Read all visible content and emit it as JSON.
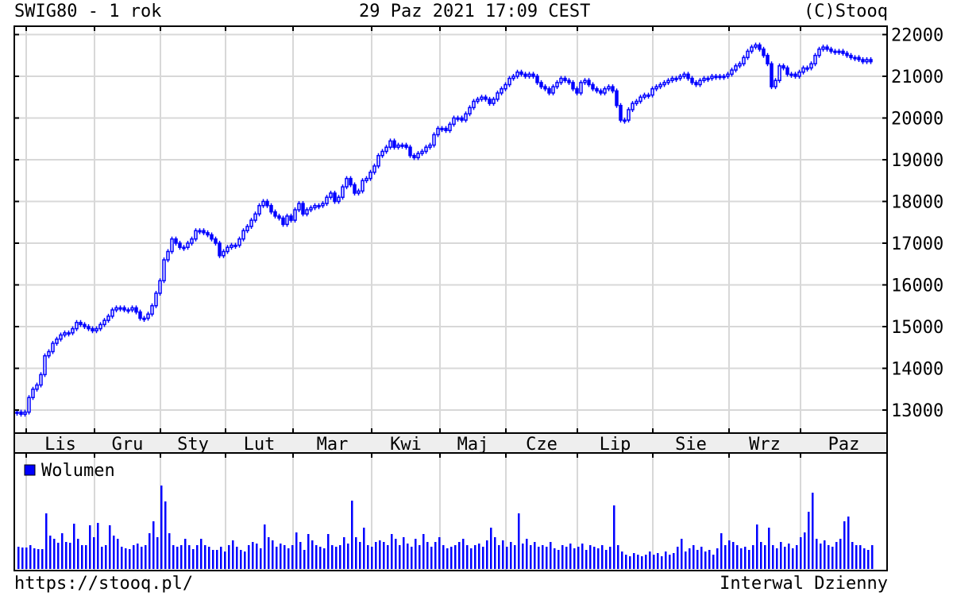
{
  "header": {
    "title": "SWIG80 - 1 rok",
    "datetime": "29 Paz 2021 17:09 CEST",
    "copyright": "(C)Stooq"
  },
  "footer": {
    "url": "https://stooq.pl/",
    "interval": "Interwal Dzienny"
  },
  "colors": {
    "series": "#0000ff",
    "grid": "#d8d8d8",
    "axis_band": "#eeeeee",
    "frame": "#000000"
  },
  "chart_data": [
    {
      "type": "candlestick",
      "title": "SWIG80 - 1 rok",
      "ylim": [
        12500,
        22200
      ],
      "yticks": [
        13000,
        14000,
        15000,
        16000,
        17000,
        18000,
        19000,
        20000,
        21000,
        22000
      ],
      "ytick_labels": [
        "13000",
        "14000",
        "15000",
        "16000",
        "17000",
        "18000",
        "19000",
        "20000",
        "21000",
        "22000"
      ],
      "y_axis_side": "right",
      "grid": true,
      "month_labels": [
        "Lis",
        "Gru",
        "Sty",
        "Lut",
        "Mar",
        "Kwi",
        "Maj",
        "Cze",
        "Lip",
        "Sie",
        "Wrz",
        "Paz"
      ],
      "close": [
        12950,
        12900,
        12950,
        13300,
        13500,
        13600,
        13850,
        14300,
        14400,
        14600,
        14700,
        14800,
        14850,
        14850,
        14950,
        15100,
        15050,
        15000,
        14950,
        14900,
        14950,
        15050,
        15150,
        15250,
        15400,
        15450,
        15450,
        15400,
        15400,
        15450,
        15350,
        15200,
        15200,
        15300,
        15500,
        15800,
        16100,
        16600,
        16800,
        17100,
        17000,
        16900,
        16900,
        17000,
        17100,
        17300,
        17300,
        17250,
        17200,
        17100,
        17000,
        16700,
        16800,
        16900,
        16950,
        16950,
        17100,
        17300,
        17400,
        17550,
        17700,
        17900,
        18000,
        17900,
        17750,
        17650,
        17600,
        17450,
        17650,
        17550,
        17800,
        17950,
        17700,
        17800,
        17850,
        17900,
        17900,
        17950,
        18100,
        18200,
        18000,
        18100,
        18350,
        18550,
        18400,
        18200,
        18250,
        18500,
        18550,
        18700,
        18850,
        19100,
        19200,
        19300,
        19450,
        19300,
        19350,
        19350,
        19300,
        19100,
        19050,
        19150,
        19200,
        19300,
        19350,
        19600,
        19750,
        19750,
        19700,
        19850,
        20000,
        20000,
        19950,
        20100,
        20250,
        20400,
        20450,
        20500,
        20450,
        20350,
        20450,
        20600,
        20700,
        20800,
        20950,
        21000,
        21100,
        21050,
        21000,
        21050,
        21000,
        20850,
        20750,
        20700,
        20600,
        20750,
        20850,
        20950,
        20900,
        20850,
        20700,
        20600,
        20850,
        20900,
        20800,
        20700,
        20650,
        20600,
        20700,
        20750,
        20650,
        20300,
        19950,
        19950,
        20200,
        20350,
        20400,
        20500,
        20550,
        20550,
        20700,
        20750,
        20800,
        20850,
        20900,
        20950,
        20950,
        21000,
        21050,
        20950,
        20850,
        20800,
        20900,
        20950,
        20950,
        21000,
        21000,
        21000,
        21000,
        21050,
        21150,
        21250,
        21300,
        21450,
        21600,
        21700,
        21750,
        21650,
        21500,
        21300,
        20750,
        20900,
        21250,
        21200,
        21050,
        21050,
        21000,
        21100,
        21200,
        21200,
        21300,
        21500,
        21650,
        21700,
        21650,
        21600,
        21600,
        21600,
        21550,
        21500,
        21450,
        21450,
        21400,
        21350,
        21400,
        21350
      ]
    },
    {
      "type": "bar",
      "legend": "Wolumen",
      "legend_placement": "top-left",
      "values": [
        28,
        27,
        27,
        30,
        26,
        25,
        25,
        70,
        42,
        38,
        33,
        45,
        34,
        33,
        57,
        38,
        30,
        30,
        55,
        40,
        58,
        28,
        30,
        55,
        42,
        38,
        28,
        26,
        25,
        30,
        32,
        28,
        30,
        45,
        60,
        40,
        105,
        85,
        45,
        30,
        28,
        30,
        38,
        30,
        25,
        30,
        38,
        30,
        28,
        24,
        24,
        28,
        22,
        30,
        36,
        28,
        24,
        22,
        30,
        34,
        32,
        26,
        56,
        40,
        36,
        28,
        32,
        30,
        26,
        30,
        46,
        34,
        24,
        44,
        36,
        30,
        28,
        26,
        44,
        30,
        28,
        30,
        40,
        32,
        86,
        40,
        34,
        52,
        30,
        28,
        34,
        36,
        34,
        30,
        44,
        38,
        30,
        40,
        32,
        28,
        38,
        30,
        44,
        34,
        28,
        34,
        40,
        30,
        26,
        28,
        30,
        34,
        38,
        30,
        26,
        30,
        32,
        28,
        36,
        52,
        40,
        30,
        36,
        28,
        34,
        30,
        70,
        32,
        38,
        30,
        34,
        28,
        30,
        28,
        34,
        26,
        24,
        30,
        28,
        32,
        26,
        28,
        32,
        24,
        30,
        28,
        26,
        30,
        24,
        28,
        80,
        30,
        22,
        18,
        16,
        20,
        18,
        16,
        18,
        22,
        18,
        20,
        16,
        22,
        18,
        20,
        28,
        38,
        22,
        26,
        30,
        24,
        28,
        22,
        24,
        18,
        26,
        45,
        30,
        36,
        34,
        30,
        26,
        28,
        24,
        30,
        56,
        34,
        30,
        52,
        30,
        26,
        34,
        28,
        32,
        26,
        30,
        40,
        46,
        72,
        96,
        38,
        32,
        36,
        30,
        28,
        34,
        38,
        60,
        66,
        34,
        30,
        30,
        26,
        24,
        30
      ]
    }
  ]
}
